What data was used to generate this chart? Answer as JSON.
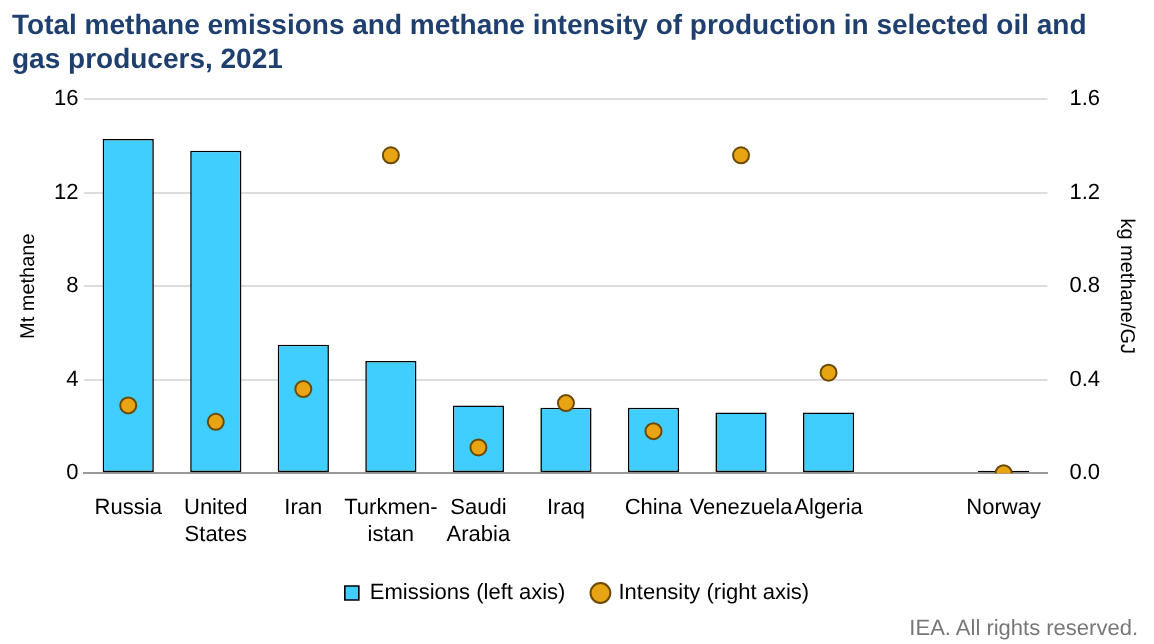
{
  "chart_data": {
    "type": "bar",
    "title": "Total methane emissions and methane intensity of production in selected oil and gas producers, 2021",
    "categories": [
      "Russia",
      "United States",
      "Iran",
      "Turkmen-istan",
      "Saudi Arabia",
      "Iraq",
      "China",
      "Venezuela",
      "Algeria",
      null,
      "Norway"
    ],
    "series": [
      {
        "name": "Emissions (left axis)",
        "color": "#40cdff",
        "colors": [
          "#40cdff",
          "#40cdff",
          "#40cdff",
          "#40cdff",
          "#40cdff",
          "#40cdff",
          "#40cdff",
          "#40cdff",
          "#40cdff",
          null,
          "#000000"
        ],
        "values": [
          14.3,
          13.8,
          5.5,
          4.8,
          2.9,
          2.8,
          2.8,
          2.6,
          2.6,
          null,
          0.1
        ]
      },
      {
        "name": "Intensity (right axis)",
        "type": "scatter",
        "axis": "y2",
        "color": "#e8a412",
        "values": [
          0.29,
          0.22,
          0.36,
          1.36,
          0.11,
          0.3,
          0.18,
          1.36,
          0.43,
          null,
          0.0
        ]
      }
    ],
    "ylabel": "Mt methane",
    "y2label": "kg methane/GJ",
    "ylim": [
      0,
      16
    ],
    "yticks": [
      0,
      4,
      8,
      12,
      16
    ],
    "y2lim": [
      0,
      1.6
    ],
    "y2ticks": [
      {
        "value": 0,
        "label": "0.0"
      },
      0.4,
      0.8,
      1.2,
      1.6
    ],
    "grid": "y",
    "legend": "bottom",
    "marker": "circle",
    "annotations": [
      "IEA. All rights reserved."
    ]
  }
}
